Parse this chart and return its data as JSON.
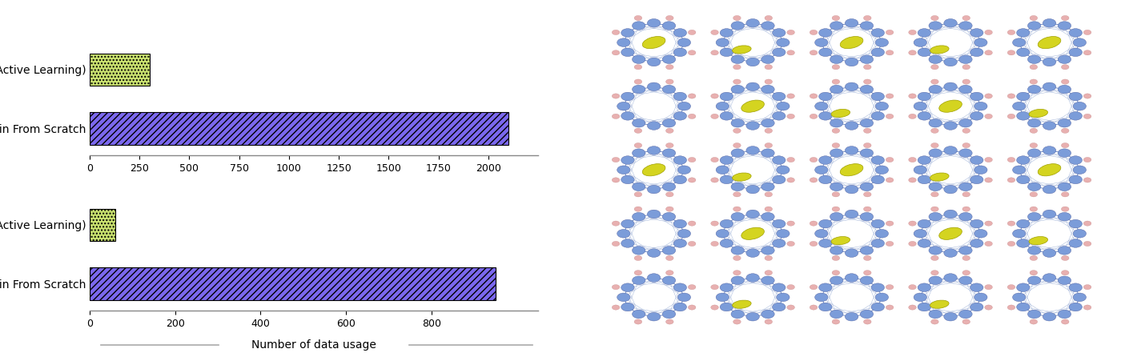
{
  "chart1": {
    "categories": [
      "MatterSim(Active Learning)",
      "Train From Scratch"
    ],
    "values": [
      300,
      2100
    ],
    "xlim": [
      0,
      2250
    ],
    "xticks": [
      0,
      250,
      500,
      750,
      1000,
      1250,
      1500,
      1750,
      2000
    ]
  },
  "chart2": {
    "categories": [
      "MatterSim(Active Learning)",
      "Train From Scratch"
    ],
    "values": [
      60,
      950
    ],
    "xlim": [
      0,
      1050
    ],
    "xticks": [
      0,
      200,
      400,
      600,
      800
    ]
  },
  "bar_color_green": "#c8e06e",
  "bar_color_purple": "#7b68ee",
  "bar_hatch_green": "....",
  "bar_hatch_purple": "////",
  "xlabel": "Number of data usage",
  "background_color": "#ffffff",
  "spine_color": "#888888",
  "tick_fontsize": 9,
  "label_fontsize": 10
}
